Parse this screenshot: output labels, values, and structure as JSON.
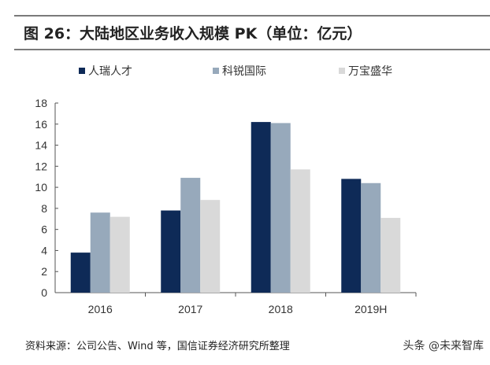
{
  "title": "图 26：大陆地区业务收入规模 PK（单位：亿元）",
  "source": "资料来源：公司公告、Wind 等，国信证券经济研究所整理",
  "watermark": "头条 @未来智库",
  "chart_data": {
    "type": "bar",
    "title": "图 26：大陆地区业务收入规模 PK（单位：亿元）",
    "categories": [
      "2016",
      "2017",
      "2018",
      "2019H"
    ],
    "series": [
      {
        "name": "人瑞人才",
        "color": "#0e2a57",
        "values": [
          3.8,
          7.8,
          16.2,
          10.8
        ]
      },
      {
        "name": "科锐国际",
        "color": "#97a9bb",
        "values": [
          7.6,
          10.9,
          16.1,
          10.4
        ]
      },
      {
        "name": "万宝盛华",
        "color": "#d9d9d9",
        "values": [
          7.2,
          8.8,
          11.7,
          7.1
        ]
      }
    ],
    "ylim": [
      0,
      18
    ],
    "yticks": [
      "0",
      "2",
      "4",
      "6",
      "8",
      "10",
      "12",
      "14",
      "16",
      "18"
    ],
    "grid": false,
    "legend": "top"
  }
}
